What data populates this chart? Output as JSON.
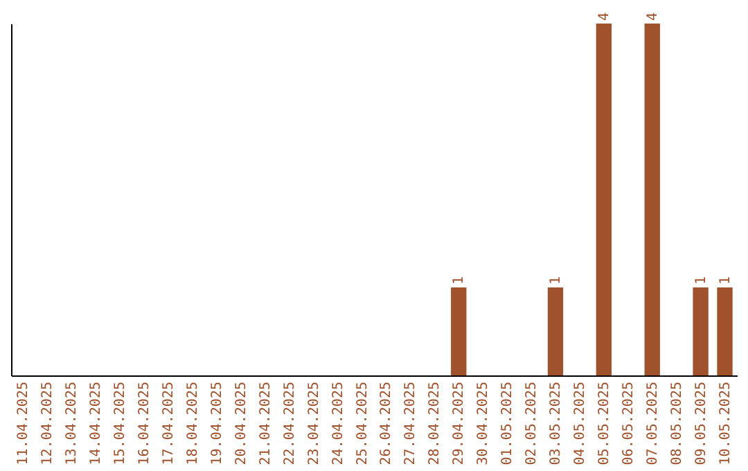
{
  "chart_data": {
    "type": "bar",
    "categories": [
      "11.04.2025",
      "12.04.2025",
      "13.04.2025",
      "14.04.2025",
      "15.04.2025",
      "16.04.2025",
      "17.04.2025",
      "18.04.2025",
      "19.04.2025",
      "20.04.2025",
      "21.04.2025",
      "22.04.2025",
      "23.04.2025",
      "24.04.2025",
      "25.04.2025",
      "26.04.2025",
      "27.04.2025",
      "28.04.2025",
      "29.04.2025",
      "30.04.2025",
      "01.05.2025",
      "02.05.2025",
      "03.05.2025",
      "04.05.2025",
      "05.05.2025",
      "06.05.2025",
      "07.05.2025",
      "08.05.2025",
      "09.05.2025",
      "10.05.2025"
    ],
    "values": [
      null,
      null,
      null,
      null,
      null,
      null,
      null,
      null,
      null,
      null,
      null,
      null,
      null,
      null,
      null,
      null,
      null,
      null,
      1,
      null,
      null,
      null,
      1,
      null,
      4,
      null,
      4,
      null,
      1,
      1
    ],
    "data_labels": true,
    "color": "#a0522d",
    "ylim": [
      0,
      4
    ],
    "tick_labels": "x"
  }
}
